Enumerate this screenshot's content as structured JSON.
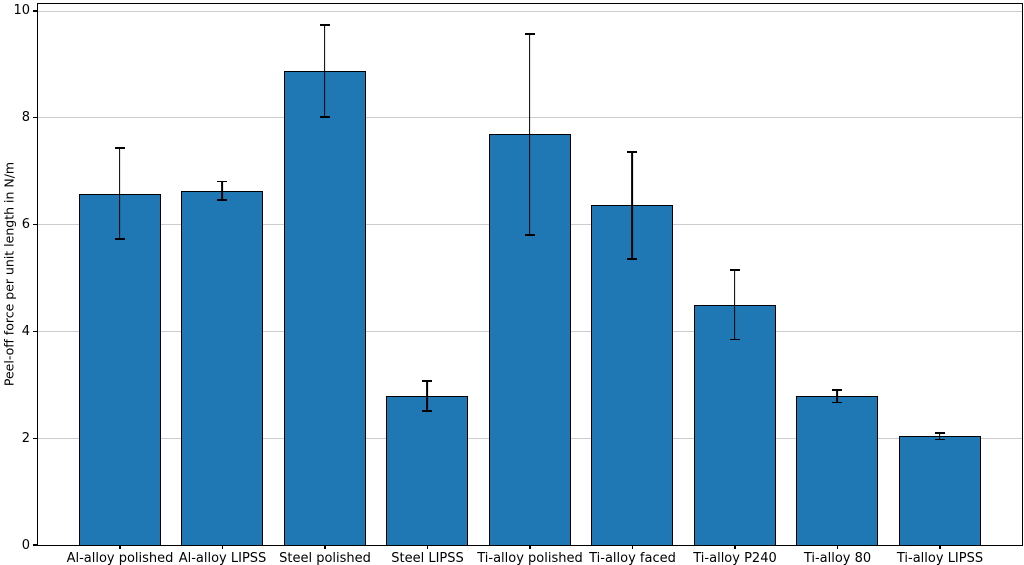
{
  "chart_data": {
    "type": "bar",
    "title": "",
    "xlabel": "",
    "ylabel": "Peel-off force per unit length in N/m",
    "categories": [
      "Al-alloy polished",
      "Al-alloy LIPSS",
      "Steel polished",
      "Steel LIPSS",
      "Ti-alloy polished",
      "Ti-alloy faced",
      "Ti-alloy P240",
      "Ti-alloy 80",
      "Ti-alloy LIPSS"
    ],
    "values": [
      6.57,
      6.63,
      8.87,
      2.78,
      7.68,
      6.35,
      4.49,
      2.78,
      2.03
    ],
    "errors": [
      0.85,
      0.17,
      0.86,
      0.28,
      1.88,
      1.0,
      0.65,
      0.12,
      0.06
    ],
    "yticks": [
      0,
      2,
      4,
      6,
      8,
      10
    ],
    "ylim": [
      0,
      10.13
    ],
    "grid": true,
    "legend": "none",
    "bar_color": "#1f77b4",
    "bar_edge_color": "#000000",
    "error_color": "#000000",
    "grid_color": "#cccccc",
    "axis_color": "#000000",
    "background_color": "#ffffff"
  }
}
